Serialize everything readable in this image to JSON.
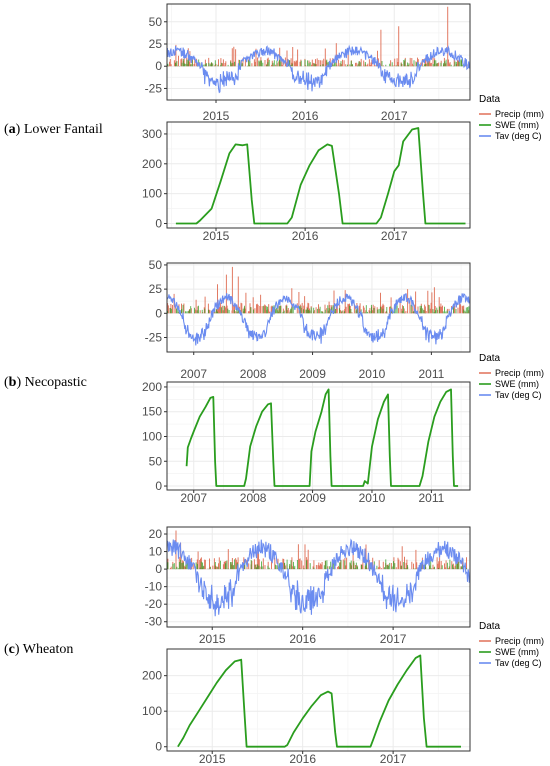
{
  "colors": {
    "precip": "#e27a63",
    "swe": "#2a9d1e",
    "tav": "#6b8cf0",
    "grid": "#ebebeb",
    "panel_border": "#333333"
  },
  "chart_data": [
    {
      "site": "Lower Fantail",
      "letter": "a",
      "label_rest": ") Lower Fantail",
      "legend": {
        "title": "Data",
        "entries": [
          "Precip (mm)",
          "SWE (mm)",
          "Tav (deg C)"
        ]
      },
      "years": [
        "2015",
        "2016",
        "2017"
      ],
      "year_pos": [
        2015.0,
        2016.0,
        2017.0
      ],
      "x_range": [
        2014.45,
        2017.85
      ],
      "top": {
        "type": "line",
        "ylim": [
          -38,
          70
        ],
        "yticks": [
          -25,
          0,
          25,
          50
        ],
        "ytick_labels": [
          "-25",
          "0",
          "25",
          "50"
        ],
        "tav": {
          "mean": 3,
          "amp": 14,
          "peak": 0.55,
          "noise": 6,
          "cold_extra": 14
        },
        "precip": {
          "typical": 10,
          "spikes": [
            [
              2014.55,
              24
            ],
            [
              2015.2,
              22
            ],
            [
              2016.35,
              26
            ],
            [
              2016.85,
              41
            ],
            [
              2017.05,
              45
            ],
            [
              2017.6,
              67
            ]
          ]
        }
      },
      "bottom": {
        "type": "line",
        "ylim": [
          -15,
          340
        ],
        "yticks": [
          0,
          100,
          200,
          300
        ],
        "ytick_labels": [
          "0",
          "100",
          "200",
          "300"
        ],
        "swe": [
          [
            2014.55,
            0
          ],
          [
            2014.78,
            0
          ],
          [
            2014.82,
            10
          ],
          [
            2014.95,
            50
          ],
          [
            2015.05,
            140
          ],
          [
            2015.15,
            235
          ],
          [
            2015.22,
            265
          ],
          [
            2015.3,
            262
          ],
          [
            2015.35,
            265
          ],
          [
            2015.4,
            80
          ],
          [
            2015.43,
            0
          ],
          [
            2015.8,
            0
          ],
          [
            2015.85,
            20
          ],
          [
            2015.95,
            130
          ],
          [
            2016.05,
            195
          ],
          [
            2016.15,
            245
          ],
          [
            2016.25,
            265
          ],
          [
            2016.3,
            260
          ],
          [
            2016.38,
            100
          ],
          [
            2016.42,
            0
          ],
          [
            2016.8,
            0
          ],
          [
            2016.85,
            20
          ],
          [
            2016.93,
            100
          ],
          [
            2017.0,
            175
          ],
          [
            2017.05,
            195
          ],
          [
            2017.1,
            275
          ],
          [
            2017.2,
            315
          ],
          [
            2017.27,
            320
          ],
          [
            2017.32,
            110
          ],
          [
            2017.35,
            0
          ],
          [
            2017.8,
            0
          ]
        ]
      }
    },
    {
      "site": "Necopastic",
      "letter": "b",
      "label_rest": ") Necopastic",
      "legend": {
        "title": "Data",
        "entries": [
          "Precip (mm)",
          "SWE (mm)",
          "Tav (deg C)"
        ]
      },
      "years": [
        "2007",
        "2008",
        "2009",
        "2010",
        "2011"
      ],
      "year_pos": [
        2007.0,
        2008.0,
        2009.0,
        2010.0,
        2011.0
      ],
      "x_range": [
        2006.55,
        2011.65
      ],
      "top": {
        "type": "line",
        "ylim": [
          -40,
          52
        ],
        "yticks": [
          -25,
          0,
          25,
          50
        ],
        "ytick_labels": [
          "-25",
          "0",
          "25",
          "50"
        ],
        "tav": {
          "mean": -2,
          "amp": 18,
          "peak": 0.55,
          "noise": 5,
          "cold_extra": 10
        },
        "precip": {
          "typical": 11,
          "spikes": [
            [
              2007.4,
              30
            ],
            [
              2007.55,
              40
            ],
            [
              2007.65,
              48
            ],
            [
              2007.75,
              38
            ],
            [
              2008.65,
              26
            ],
            [
              2009.55,
              24
            ],
            [
              2010.6,
              25
            ],
            [
              2011.05,
              27
            ]
          ]
        }
      },
      "bottom": {
        "type": "line",
        "ylim": [
          -8,
          210
        ],
        "yticks": [
          0,
          50,
          100,
          150,
          200
        ],
        "ytick_labels": [
          "0",
          "50",
          "100",
          "150",
          "200"
        ],
        "swe": [
          [
            2006.88,
            40
          ],
          [
            2006.9,
            78
          ],
          [
            2006.95,
            95
          ],
          [
            2007.0,
            110
          ],
          [
            2007.1,
            140
          ],
          [
            2007.2,
            160
          ],
          [
            2007.28,
            178
          ],
          [
            2007.33,
            180
          ],
          [
            2007.36,
            50
          ],
          [
            2007.38,
            0
          ],
          [
            2007.85,
            0
          ],
          [
            2007.88,
            15
          ],
          [
            2007.95,
            80
          ],
          [
            2008.05,
            120
          ],
          [
            2008.15,
            150
          ],
          [
            2008.25,
            165
          ],
          [
            2008.3,
            167
          ],
          [
            2008.34,
            50
          ],
          [
            2008.36,
            0
          ],
          [
            2008.95,
            0
          ],
          [
            2008.98,
            70
          ],
          [
            2009.05,
            110
          ],
          [
            2009.15,
            150
          ],
          [
            2009.22,
            185
          ],
          [
            2009.27,
            195
          ],
          [
            2009.3,
            60
          ],
          [
            2009.32,
            0
          ],
          [
            2009.85,
            0
          ],
          [
            2009.88,
            10
          ],
          [
            2009.93,
            5
          ],
          [
            2010.0,
            80
          ],
          [
            2010.1,
            135
          ],
          [
            2010.2,
            170
          ],
          [
            2010.27,
            185
          ],
          [
            2010.3,
            60
          ],
          [
            2010.32,
            0
          ],
          [
            2010.8,
            0
          ],
          [
            2010.85,
            20
          ],
          [
            2010.95,
            90
          ],
          [
            2011.05,
            140
          ],
          [
            2011.15,
            170
          ],
          [
            2011.25,
            190
          ],
          [
            2011.33,
            195
          ],
          [
            2011.36,
            60
          ],
          [
            2011.38,
            0
          ],
          [
            2011.45,
            0
          ]
        ]
      }
    },
    {
      "site": "Wheaton",
      "letter": "c",
      "label_rest": ") Wheaton",
      "legend": {
        "title": "Data",
        "entries": [
          "Precip (mm)",
          "SWE (mm)",
          "Tav (deg C)"
        ]
      },
      "years": [
        "2015",
        "2016",
        "2017"
      ],
      "year_pos": [
        2015.0,
        2016.0,
        2017.0
      ],
      "x_range": [
        2014.5,
        2017.85
      ],
      "top": {
        "type": "line",
        "ylim": [
          -33,
          24
        ],
        "yticks": [
          -30,
          -20,
          -10,
          0,
          10,
          20
        ],
        "ytick_labels": [
          "-30",
          "-20",
          "-10",
          "0",
          "10",
          "20"
        ],
        "tav": {
          "mean": -1,
          "amp": 13,
          "peak": 0.55,
          "noise": 5,
          "cold_extra": 10
        },
        "precip": {
          "typical": 7,
          "spikes": [
            [
              2014.6,
              22
            ],
            [
              2014.65,
              15
            ],
            [
              2015.5,
              12
            ],
            [
              2016.7,
              14
            ],
            [
              2017.1,
              13
            ]
          ]
        }
      },
      "bottom": {
        "type": "line",
        "ylim": [
          -12,
          275
        ],
        "yticks": [
          0,
          100,
          200
        ],
        "ytick_labels": [
          "0",
          "100",
          "200"
        ],
        "swe": [
          [
            2014.62,
            0
          ],
          [
            2014.68,
            25
          ],
          [
            2014.75,
            60
          ],
          [
            2014.85,
            100
          ],
          [
            2014.95,
            140
          ],
          [
            2015.05,
            180
          ],
          [
            2015.15,
            215
          ],
          [
            2015.25,
            240
          ],
          [
            2015.32,
            245
          ],
          [
            2015.36,
            80
          ],
          [
            2015.38,
            0
          ],
          [
            2015.8,
            0
          ],
          [
            2015.83,
            5
          ],
          [
            2015.9,
            40
          ],
          [
            2016.0,
            80
          ],
          [
            2016.1,
            115
          ],
          [
            2016.2,
            145
          ],
          [
            2016.28,
            155
          ],
          [
            2016.32,
            150
          ],
          [
            2016.36,
            40
          ],
          [
            2016.38,
            0
          ],
          [
            2016.75,
            0
          ],
          [
            2016.78,
            20
          ],
          [
            2016.85,
            70
          ],
          [
            2016.95,
            130
          ],
          [
            2017.05,
            175
          ],
          [
            2017.15,
            215
          ],
          [
            2017.25,
            250
          ],
          [
            2017.3,
            257
          ],
          [
            2017.34,
            80
          ],
          [
            2017.37,
            0
          ],
          [
            2017.75,
            0
          ]
        ]
      }
    }
  ]
}
